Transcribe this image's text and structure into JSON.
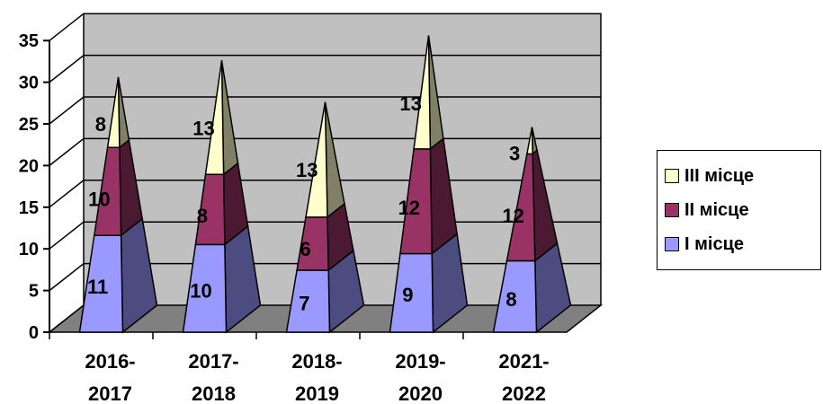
{
  "chart_data": {
    "type": "bar",
    "subtype": "stacked-3d-pyramid",
    "title": "",
    "xlabel": "",
    "ylabel": "",
    "ylim": [
      0,
      35
    ],
    "yticks": [
      "0",
      "5",
      "10",
      "15",
      "20",
      "25",
      "30",
      "35"
    ],
    "grid": true,
    "legend_position": "right",
    "categories": [
      [
        "2016-",
        "2017"
      ],
      [
        "2017-",
        "2018"
      ],
      [
        "2018-",
        "2019"
      ],
      [
        "2019-",
        "2020"
      ],
      [
        "2021-",
        "2022"
      ]
    ],
    "series": [
      {
        "name": "I місце",
        "values": [
          11,
          10,
          7,
          9,
          8
        ],
        "color": "#9999ff",
        "side_color": "#4c4c80"
      },
      {
        "name": "II місце",
        "values": [
          10,
          8,
          6,
          12,
          12
        ],
        "color": "#993366",
        "side_color": "#4c1933"
      },
      {
        "name": "III місце",
        "values": [
          8,
          13,
          13,
          13,
          3
        ],
        "color": "#ffffcc",
        "side_color": "#808066"
      }
    ],
    "legend_order": [
      2,
      1,
      0
    ],
    "colors": {
      "wall": "#c0c0c0",
      "floor": "#808080",
      "grid": "#000000"
    }
  }
}
